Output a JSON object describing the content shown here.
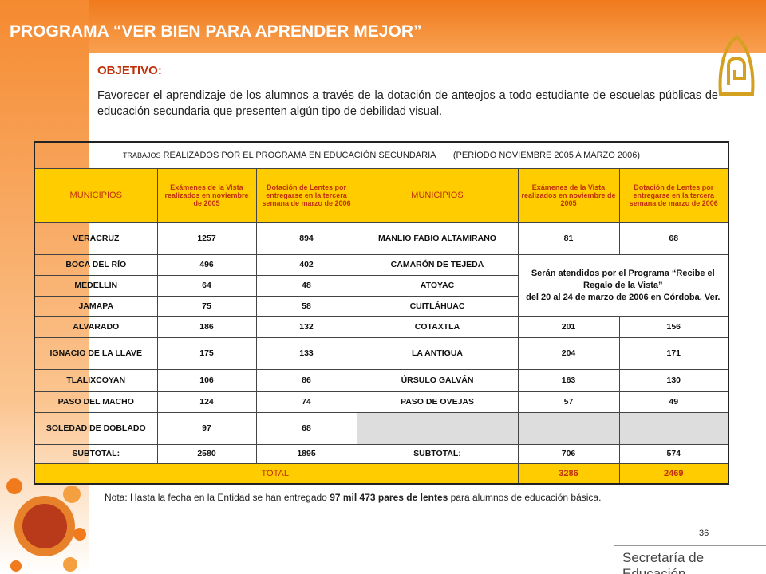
{
  "header": {
    "title": "PROGRAMA “VER BIEN PARA APRENDER MEJOR”"
  },
  "objective": {
    "heading": "OBJETIVO:",
    "text": "Favorecer el aprendizaje de los alumnos a través de la dotación de anteojos a todo estudiante de escuelas públicas de educación secundaria que presenten algún tipo de debilidad visual."
  },
  "table": {
    "caption_small": "TRABAJOS",
    "caption": "REALIZADOS POR EL PROGRAMA EN EDUCACIÓN SECUNDARIA",
    "period": "(PERÍODO NOVIEMBRE 2005 A MARZO 2006)",
    "columns": [
      "MUNICIPIOS",
      "Exámenes de la Vista realizados en noviembre de 2005",
      "Dotación de Lentes por entregarse en la tercera semana de marzo de 2006",
      "MUNICIPIOS",
      "Exámenes de la Vista realizados en noviembre de 2005",
      "Dotación de Lentes por entregarse en la tercera semana de marzo de 2006"
    ],
    "rows": [
      [
        "VERACRUZ",
        1257,
        894,
        "MANLIO FABIO ALTAMIRANO",
        81,
        68
      ],
      [
        "BOCA DEL RÍO",
        496,
        402,
        "CAMARÓN DE TEJEDA"
      ],
      [
        "MEDELLÍN",
        64,
        48,
        "ATOYAC"
      ],
      [
        "JAMAPA",
        75,
        58,
        "CUITLÁHUAC"
      ],
      [
        "ALVARADO",
        186,
        132,
        "COTAXTLA",
        201,
        156
      ],
      [
        "IGNACIO DE LA LLAVE",
        175,
        133,
        "LA ANTIGUA",
        204,
        171
      ],
      [
        "TLALIXCOYAN",
        106,
        86,
        "ÚRSULO GALVÁN",
        163,
        130
      ],
      [
        "PASO DEL MACHO",
        124,
        74,
        "PASO DE OVEJAS",
        57,
        49
      ],
      [
        "SOLEDAD DE DOBLADO",
        97,
        68
      ],
      [
        "SUBTOTAL:",
        2580,
        1895,
        "SUBTOTAL:",
        706,
        574
      ]
    ],
    "merged_note": [
      "Serán atendidos por el Programa “Recibe el Regalo de la Vista”",
      "del 20 al 24 de marzo de 2006 en Córdoba, Ver."
    ],
    "total": {
      "label": "TOTAL:",
      "values": [
        3286,
        2469
      ]
    }
  },
  "note": {
    "before": "Nota: Hasta la fecha en la Entidad se han entregado ",
    "bold": "97 mil 473 pares de lentes",
    "after": " para alumnos de educación básica."
  },
  "page_number": "36",
  "footer": "Secretaría de Educación"
}
